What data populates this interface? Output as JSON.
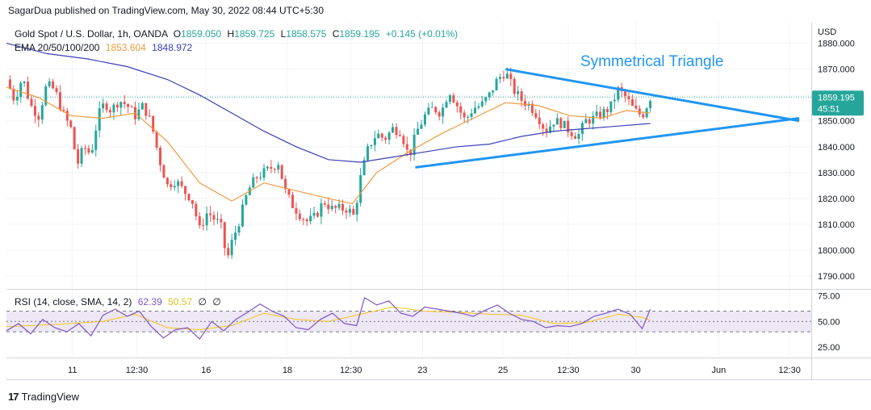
{
  "caption": "SagarDua published on TradingView.com, May 30, 2022 08:44 UTC+5:30",
  "legend": {
    "symbol": "Gold Spot / U.S. Dollar, 1h, OANDA",
    "open_label": "O",
    "open": "1859.050",
    "high_label": "H",
    "high": "1859.725",
    "low_label": "L",
    "low": "1858.575",
    "close_label": "C",
    "close": "1859.195",
    "change": "+0.145 (+0.01%)",
    "ema_label": "EMA 20/50/100/200",
    "ema_value_1": "1853.604",
    "ema_value_2": "1848.972"
  },
  "rsi_legend": {
    "label": "RSI (14, close, SMA, 14, 2)",
    "rsi_value": "62.39",
    "sma_value": "50.57",
    "extra_1": "∅",
    "extra_2": "∅"
  },
  "annotation": "Symmetrical Triangle",
  "currency": "USD",
  "price_tag": {
    "price": "1859.195",
    "countdown": "45:51"
  },
  "footer": {
    "logo": "17",
    "brand": "TradingView"
  },
  "colors": {
    "up": "#26a69a",
    "down": "#ef5350",
    "ema_short": "#f09a3e",
    "ema_long": "#3b3fb8",
    "triangle": "#2196f3",
    "rsi": "#7e57c2",
    "rsi_sma": "#f5c518",
    "rsi_band": "#ede7f6",
    "price_tag": "#26a69a"
  },
  "chart_data": [
    {
      "type": "candlestick",
      "title": "Gold Spot / U.S. Dollar, 1h, OANDA",
      "ylim": [
        1785,
        1888
      ],
      "y_ticks": [
        "1880.000",
        "1870.000",
        "1860.000",
        "1850.000",
        "1840.000",
        "1830.000",
        "1820.000",
        "1810.000",
        "1800.000",
        "1790.000"
      ],
      "y_tick_values": [
        1880,
        1870,
        1860,
        1850,
        1840,
        1830,
        1820,
        1810,
        1800,
        1790
      ],
      "x_ticks": [
        "11",
        "12:30",
        "16",
        "18",
        "12:30",
        "23",
        "25",
        "12:30",
        "30",
        "Jun",
        "12:30"
      ],
      "x_tick_positions": [
        0.082,
        0.162,
        0.248,
        0.349,
        0.428,
        0.517,
        0.617,
        0.698,
        0.782,
        0.885,
        0.973
      ],
      "price_path": [
        [
          0.0,
          1866
        ],
        [
          0.01,
          1858
        ],
        [
          0.02,
          1867
        ],
        [
          0.03,
          1856
        ],
        [
          0.04,
          1852
        ],
        [
          0.05,
          1864
        ],
        [
          0.06,
          1862
        ],
        [
          0.07,
          1853
        ],
        [
          0.08,
          1847
        ],
        [
          0.088,
          1833
        ],
        [
          0.096,
          1840
        ],
        [
          0.105,
          1837
        ],
        [
          0.114,
          1852
        ],
        [
          0.122,
          1857
        ],
        [
          0.13,
          1854
        ],
        [
          0.14,
          1858
        ],
        [
          0.15,
          1856
        ],
        [
          0.16,
          1852
        ],
        [
          0.17,
          1856
        ],
        [
          0.18,
          1849
        ],
        [
          0.19,
          1835
        ],
        [
          0.2,
          1825
        ],
        [
          0.21,
          1827
        ],
        [
          0.22,
          1823
        ],
        [
          0.23,
          1820
        ],
        [
          0.24,
          1808
        ],
        [
          0.25,
          1815
        ],
        [
          0.258,
          1812
        ],
        [
          0.266,
          1810
        ],
        [
          0.274,
          1796
        ],
        [
          0.28,
          1803
        ],
        [
          0.29,
          1812
        ],
        [
          0.3,
          1823
        ],
        [
          0.31,
          1828
        ],
        [
          0.32,
          1830
        ],
        [
          0.33,
          1832
        ],
        [
          0.338,
          1834
        ],
        [
          0.346,
          1823
        ],
        [
          0.354,
          1818
        ],
        [
          0.364,
          1814
        ],
        [
          0.374,
          1811
        ],
        [
          0.384,
          1813
        ],
        [
          0.394,
          1819
        ],
        [
          0.404,
          1816
        ],
        [
          0.414,
          1816
        ],
        [
          0.424,
          1816
        ],
        [
          0.432,
          1813
        ],
        [
          0.44,
          1828
        ],
        [
          0.45,
          1840
        ],
        [
          0.46,
          1845
        ],
        [
          0.47,
          1843
        ],
        [
          0.48,
          1847
        ],
        [
          0.49,
          1846
        ],
        [
          0.5,
          1836
        ],
        [
          0.51,
          1846
        ],
        [
          0.52,
          1852
        ],
        [
          0.53,
          1855
        ],
        [
          0.54,
          1853
        ],
        [
          0.55,
          1862
        ],
        [
          0.56,
          1856
        ],
        [
          0.57,
          1850
        ],
        [
          0.58,
          1855
        ],
        [
          0.59,
          1856
        ],
        [
          0.6,
          1860
        ],
        [
          0.61,
          1866
        ],
        [
          0.62,
          1869
        ],
        [
          0.63,
          1862
        ],
        [
          0.64,
          1858
        ],
        [
          0.65,
          1856
        ],
        [
          0.66,
          1852
        ],
        [
          0.67,
          1846
        ],
        [
          0.68,
          1850
        ],
        [
          0.69,
          1849
        ],
        [
          0.7,
          1846
        ],
        [
          0.71,
          1844
        ],
        [
          0.72,
          1850
        ],
        [
          0.73,
          1851
        ],
        [
          0.74,
          1853
        ],
        [
          0.75,
          1855
        ],
        [
          0.76,
          1862
        ],
        [
          0.77,
          1859
        ],
        [
          0.78,
          1854
        ],
        [
          0.79,
          1852
        ],
        [
          0.8,
          1859
        ]
      ],
      "ema_20_50": [
        [
          0.0,
          1863
        ],
        [
          0.04,
          1859
        ],
        [
          0.08,
          1852
        ],
        [
          0.12,
          1851
        ],
        [
          0.16,
          1853
        ],
        [
          0.2,
          1842
        ],
        [
          0.24,
          1826
        ],
        [
          0.28,
          1819
        ],
        [
          0.32,
          1826
        ],
        [
          0.36,
          1823
        ],
        [
          0.4,
          1820
        ],
        [
          0.43,
          1818
        ],
        [
          0.46,
          1830
        ],
        [
          0.5,
          1838
        ],
        [
          0.54,
          1845
        ],
        [
          0.58,
          1851
        ],
        [
          0.62,
          1857
        ],
        [
          0.66,
          1856
        ],
        [
          0.7,
          1852
        ],
        [
          0.74,
          1851
        ],
        [
          0.77,
          1854
        ],
        [
          0.8,
          1853
        ]
      ],
      "ema_100_200": [
        [
          0.0,
          1880
        ],
        [
          0.05,
          1876
        ],
        [
          0.1,
          1874
        ],
        [
          0.15,
          1871
        ],
        [
          0.2,
          1866
        ],
        [
          0.24,
          1860
        ],
        [
          0.28,
          1853
        ],
        [
          0.32,
          1846
        ],
        [
          0.36,
          1840
        ],
        [
          0.4,
          1835
        ],
        [
          0.44,
          1834
        ],
        [
          0.48,
          1836
        ],
        [
          0.52,
          1838
        ],
        [
          0.56,
          1840
        ],
        [
          0.6,
          1841
        ],
        [
          0.64,
          1844
        ],
        [
          0.68,
          1846
        ],
        [
          0.72,
          1847
        ],
        [
          0.76,
          1848
        ],
        [
          0.8,
          1849
        ]
      ],
      "triangle_upper": [
        [
          0.62,
          1870
        ],
        [
          0.985,
          1850
        ]
      ],
      "triangle_lower": [
        [
          0.508,
          1832
        ],
        [
          0.985,
          1851
        ]
      ],
      "last_price": 1859.195
    },
    {
      "type": "line",
      "title": "RSI (14, close, SMA, 14, 2)",
      "ylim": [
        15,
        80
      ],
      "y_ticks": [
        "75.00",
        "50.00",
        "25.00"
      ],
      "y_tick_values": [
        75,
        50,
        25
      ],
      "band": [
        40,
        60
      ],
      "series": [
        {
          "name": "RSI",
          "values": [
            [
              0.0,
              41
            ],
            [
              0.015,
              48
            ],
            [
              0.03,
              38
            ],
            [
              0.045,
              52
            ],
            [
              0.06,
              44
            ],
            [
              0.075,
              40
            ],
            [
              0.09,
              48
            ],
            [
              0.105,
              36
            ],
            [
              0.12,
              56
            ],
            [
              0.135,
              62
            ],
            [
              0.15,
              55
            ],
            [
              0.165,
              60
            ],
            [
              0.18,
              45
            ],
            [
              0.195,
              34
            ],
            [
              0.21,
              42
            ],
            [
              0.225,
              44
            ],
            [
              0.24,
              33
            ],
            [
              0.255,
              50
            ],
            [
              0.27,
              41
            ],
            [
              0.285,
              52
            ],
            [
              0.3,
              59
            ],
            [
              0.315,
              67
            ],
            [
              0.33,
              60
            ],
            [
              0.345,
              55
            ],
            [
              0.36,
              44
            ],
            [
              0.375,
              42
            ],
            [
              0.39,
              52
            ],
            [
              0.405,
              58
            ],
            [
              0.42,
              48
            ],
            [
              0.435,
              46
            ],
            [
              0.445,
              73
            ],
            [
              0.46,
              66
            ],
            [
              0.475,
              70
            ],
            [
              0.49,
              58
            ],
            [
              0.505,
              55
            ],
            [
              0.52,
              64
            ],
            [
              0.535,
              62
            ],
            [
              0.55,
              60
            ],
            [
              0.565,
              58
            ],
            [
              0.58,
              55
            ],
            [
              0.595,
              61
            ],
            [
              0.61,
              66
            ],
            [
              0.625,
              58
            ],
            [
              0.64,
              52
            ],
            [
              0.655,
              50
            ],
            [
              0.67,
              44
            ],
            [
              0.685,
              46
            ],
            [
              0.7,
              45
            ],
            [
              0.715,
              48
            ],
            [
              0.73,
              55
            ],
            [
              0.745,
              58
            ],
            [
              0.76,
              62
            ],
            [
              0.775,
              57
            ],
            [
              0.79,
              43
            ],
            [
              0.8,
              62
            ]
          ]
        },
        {
          "name": "RSI-based MA",
          "values": [
            [
              0.0,
              45
            ],
            [
              0.06,
              47
            ],
            [
              0.12,
              50
            ],
            [
              0.16,
              57
            ],
            [
              0.2,
              44
            ],
            [
              0.24,
              42
            ],
            [
              0.28,
              46
            ],
            [
              0.32,
              58
            ],
            [
              0.36,
              52
            ],
            [
              0.4,
              50
            ],
            [
              0.44,
              57
            ],
            [
              0.48,
              64
            ],
            [
              0.52,
              60
            ],
            [
              0.56,
              59
            ],
            [
              0.6,
              57
            ],
            [
              0.64,
              56
            ],
            [
              0.68,
              48
            ],
            [
              0.72,
              49
            ],
            [
              0.76,
              57
            ],
            [
              0.79,
              54
            ],
            [
              0.8,
              51
            ]
          ]
        }
      ],
      "last_values": {
        "rsi": 62.39,
        "sma": 50.57
      }
    }
  ]
}
